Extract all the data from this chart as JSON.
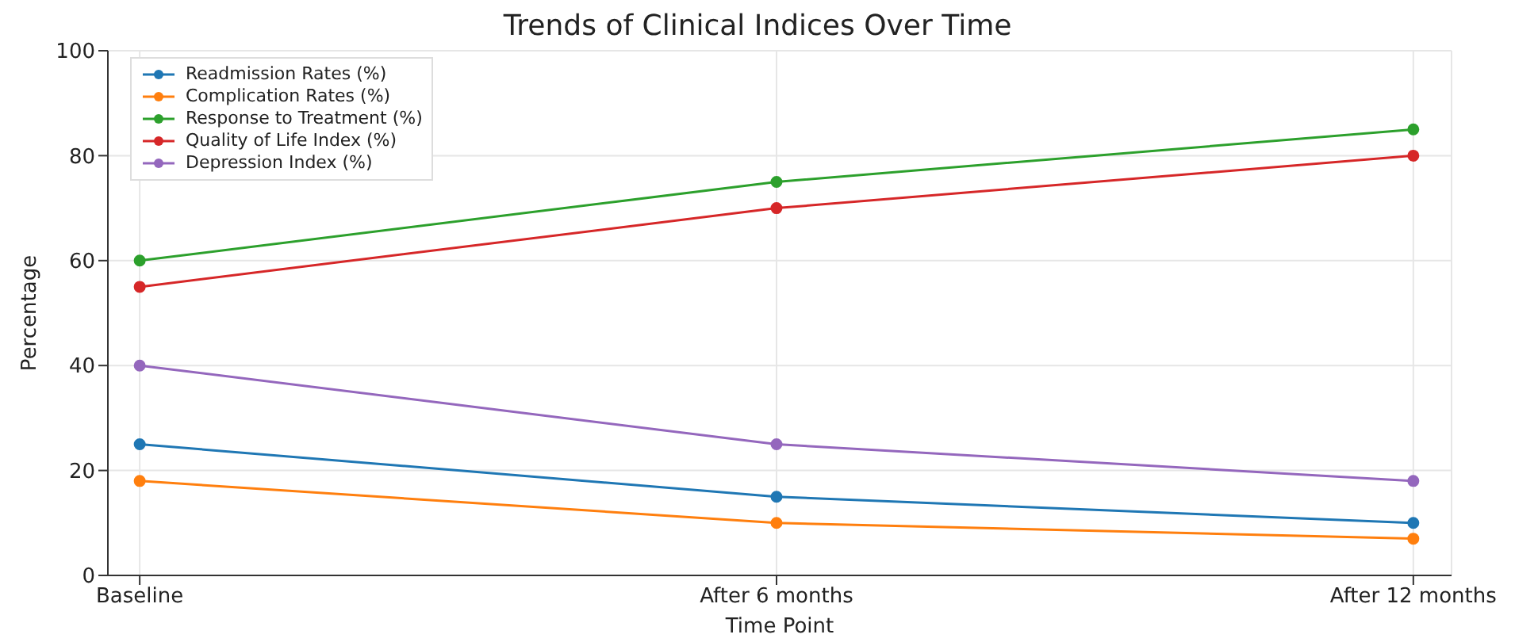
{
  "chart_data": {
    "type": "line",
    "title": "Trends of Clinical Indices Over Time",
    "xlabel": "Time Point",
    "ylabel": "Percentage",
    "categories": [
      "Baseline",
      "After 6 months",
      "After 12 months"
    ],
    "series": [
      {
        "name": "Readmission Rates (%)",
        "color": "#1f77b4",
        "values": [
          25,
          15,
          10
        ]
      },
      {
        "name": "Complication Rates (%)",
        "color": "#ff7f0e",
        "values": [
          18,
          10,
          7
        ]
      },
      {
        "name": "Response to Treatment (%)",
        "color": "#2ca02c",
        "values": [
          60,
          75,
          85
        ]
      },
      {
        "name": "Quality of Life Index (%)",
        "color": "#d62728",
        "values": [
          55,
          70,
          80
        ]
      },
      {
        "name": "Depression Index (%)",
        "color": "#9467bd",
        "values": [
          40,
          25,
          18
        ]
      }
    ],
    "ylim": [
      0,
      100
    ],
    "yticks": [
      0,
      20,
      40,
      60,
      80,
      100
    ],
    "grid": true,
    "legend": "top left",
    "marker": "circle",
    "line_style": "solid"
  }
}
